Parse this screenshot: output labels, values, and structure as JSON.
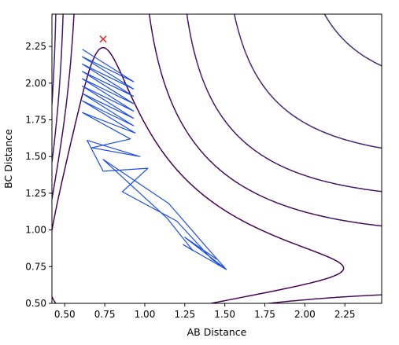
{
  "chart_data": {
    "type": "contour",
    "xlabel": "AB Distance",
    "ylabel": "BC Distance",
    "xlim": [
      0.42,
      2.48
    ],
    "ylim": [
      0.5,
      2.47
    ],
    "xticks": [
      0.5,
      0.75,
      1.0,
      1.25,
      1.5,
      1.75,
      2.0,
      2.25
    ],
    "yticks": [
      0.5,
      0.75,
      1.0,
      1.25,
      1.5,
      1.75,
      2.0,
      2.25
    ],
    "tick_format": 2,
    "surface": {
      "function": "morse_leps",
      "well_depth": 1.0,
      "re": 0.74,
      "a": 2.0,
      "coupling": 0.15,
      "levels_min": -1.1,
      "levels_max": 6.0,
      "levels_count": 32,
      "colormap": "viridis"
    },
    "trajectory": {
      "color": "#1f4fe0",
      "points": [
        [
          0.61,
          2.23
        ],
        [
          0.93,
          2.01
        ],
        [
          0.61,
          2.18
        ],
        [
          0.93,
          1.96
        ],
        [
          0.61,
          2.13
        ],
        [
          0.93,
          1.91
        ],
        [
          0.61,
          2.08
        ],
        [
          0.93,
          1.86
        ],
        [
          0.61,
          2.03
        ],
        [
          0.93,
          1.81
        ],
        [
          0.61,
          1.98
        ],
        [
          0.93,
          1.76
        ],
        [
          0.61,
          1.93
        ],
        [
          0.93,
          1.71
        ],
        [
          0.61,
          1.88
        ],
        [
          0.94,
          1.66
        ],
        [
          0.61,
          1.8
        ],
        [
          0.91,
          1.62
        ],
        [
          0.67,
          1.56
        ],
        [
          0.97,
          1.5
        ],
        [
          0.64,
          1.61
        ],
        [
          0.74,
          1.4
        ],
        [
          1.02,
          1.42
        ],
        [
          0.86,
          1.26
        ],
        [
          1.2,
          1.06
        ],
        [
          1.42,
          0.8
        ],
        [
          1.51,
          0.73
        ],
        [
          1.24,
          0.9
        ],
        [
          1.3,
          0.86
        ],
        [
          1.14,
          1.08
        ],
        [
          0.74,
          1.48
        ],
        [
          1.15,
          1.18
        ],
        [
          1.38,
          0.89
        ],
        [
          1.51,
          0.73
        ],
        [
          1.25,
          0.95
        ],
        [
          1.45,
          0.8
        ]
      ]
    },
    "marker": {
      "x": 0.74,
      "y": 2.3,
      "symbol": "x",
      "color": "#ee2222"
    }
  }
}
